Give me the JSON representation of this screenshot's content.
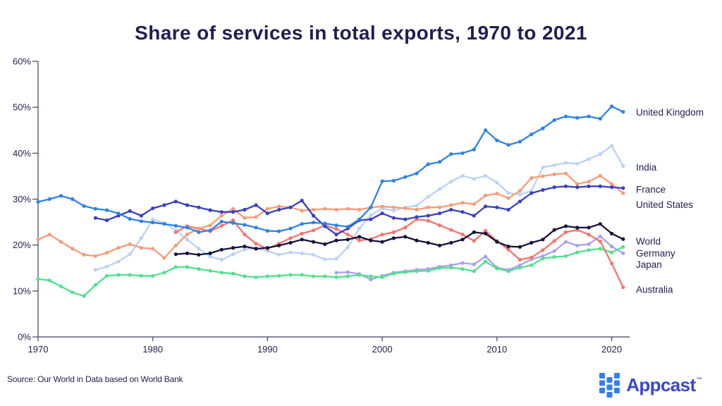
{
  "header": {
    "title": "Share of services in total exports, 1970 to 2021"
  },
  "footer": {
    "source": "Source: Our World in Data based on World Bank"
  },
  "branding": {
    "name": "Appcast",
    "trademark": "™",
    "icon_color": "#2F80ED",
    "text_color": "#3A46D2"
  },
  "chart_data": {
    "type": "line",
    "title": "Share of services in total exports, 1970 to 2021",
    "xlabel": "",
    "ylabel": "",
    "unit": "%",
    "grid": false,
    "legend_position": "right-of-line-ends",
    "axis_color": "#3F3F63",
    "tick_label_color": "#23234F",
    "x_ticks": [
      1970,
      1980,
      1990,
      2000,
      2010,
      2020
    ],
    "y_ticks_pct": [
      0,
      10,
      20,
      30,
      40,
      50,
      60
    ],
    "ylim": [
      0,
      60
    ],
    "xlim": [
      1970,
      2021
    ],
    "series": [
      {
        "name": "United Kingdom",
        "color": "#2E82E8",
        "start_year": 1970,
        "label_pct": 48.9,
        "z": 8,
        "values": [
          29.4,
          30.0,
          30.7,
          30.0,
          28.5,
          27.9,
          27.6,
          26.9,
          25.7,
          25.2,
          24.9,
          24.6,
          24.2,
          23.8,
          22.8,
          23.2,
          25.1,
          24.8,
          24.4,
          23.8,
          23.1,
          23.0,
          23.6,
          24.6,
          24.9,
          24.7,
          24.3,
          24.0,
          25.6,
          28.2,
          33.9,
          34.0,
          34.8,
          35.6,
          37.6,
          38.1,
          39.8,
          40.0,
          40.8,
          45.0,
          42.8,
          41.8,
          42.5,
          44.1,
          45.4,
          47.2,
          48.0,
          47.7,
          48.0,
          47.5,
          50.2,
          49.0
        ]
      },
      {
        "name": "India",
        "color": "#BAD2F4",
        "start_year": 1975,
        "label_pct": 36.9,
        "z": 1,
        "values": [
          14.6,
          15.3,
          16.4,
          18.0,
          21.5,
          25.6,
          24.8,
          23.2,
          21.2,
          19.2,
          17.5,
          16.8,
          18.0,
          19.0,
          19.4,
          18.7,
          17.9,
          18.4,
          18.2,
          17.9,
          16.9,
          17.0,
          19.5,
          23.6,
          26.5,
          28.0,
          27.5,
          28.2,
          28.6,
          30.5,
          32.2,
          33.8,
          35.1,
          34.4,
          35.1,
          33.6,
          31.3,
          31.0,
          31.8,
          36.9,
          37.4,
          37.9,
          37.7,
          38.7,
          39.8,
          41.6,
          37.2
        ]
      },
      {
        "name": "France",
        "color": "#3A3FC2",
        "start_year": 1975,
        "label_pct": 32.1,
        "z": 6,
        "values": [
          25.9,
          25.4,
          26.4,
          27.4,
          26.4,
          28.0,
          28.7,
          29.5,
          28.7,
          28.2,
          27.6,
          27.2,
          27.2,
          27.7,
          28.7,
          26.9,
          27.7,
          28.2,
          29.7,
          26.4,
          24.1,
          22.3,
          23.6,
          25.4,
          25.6,
          26.9,
          25.9,
          25.6,
          26.1,
          26.4,
          26.9,
          27.7,
          27.2,
          26.4,
          28.4,
          28.2,
          27.7,
          29.5,
          31.3,
          32.0,
          32.6,
          32.8,
          32.6,
          32.8,
          32.8,
          32.6,
          32.4
        ]
      },
      {
        "name": "United States",
        "color": "#F59C78",
        "start_year": 1970,
        "label_pct": 28.8,
        "z": 5,
        "values": [
          21.2,
          22.3,
          20.7,
          19.2,
          17.9,
          17.6,
          18.3,
          19.4,
          20.2,
          19.4,
          19.2,
          17.2,
          19.9,
          22.3,
          23.6,
          24.3,
          26.4,
          27.9,
          25.9,
          26.1,
          27.9,
          28.4,
          28.2,
          27.5,
          27.7,
          27.9,
          27.7,
          27.9,
          27.7,
          28.2,
          28.4,
          28.2,
          28.0,
          27.7,
          28.2,
          28.2,
          28.7,
          29.2,
          28.9,
          30.8,
          31.2,
          30.2,
          31.8,
          34.6,
          35.0,
          35.4,
          35.6,
          33.3,
          33.8,
          35.1,
          33.3,
          31.3
        ]
      },
      {
        "name": "World",
        "color": "#14143E",
        "start_year": 1982,
        "label_pct": 20.8,
        "z": 7,
        "values": [
          18.0,
          18.2,
          17.9,
          18.2,
          19.0,
          19.4,
          19.7,
          19.2,
          19.4,
          19.9,
          20.5,
          21.2,
          20.7,
          20.2,
          21.0,
          21.2,
          21.8,
          21.0,
          20.7,
          21.5,
          21.8,
          21.0,
          20.5,
          19.9,
          20.5,
          21.2,
          22.8,
          22.5,
          20.7,
          19.7,
          19.6,
          20.5,
          21.2,
          23.3,
          24.1,
          23.8,
          23.8,
          24.6,
          22.5,
          21.3
        ]
      },
      {
        "name": "Germany",
        "color": "#51E090",
        "start_year": 1970,
        "label_pct": 18.2,
        "z": 3,
        "values": [
          12.6,
          12.3,
          11.0,
          9.7,
          8.9,
          11.3,
          13.3,
          13.5,
          13.5,
          13.3,
          13.3,
          14.0,
          15.2,
          15.2,
          14.8,
          14.4,
          14.0,
          13.8,
          13.2,
          13.0,
          13.2,
          13.3,
          13.5,
          13.5,
          13.2,
          13.2,
          13.0,
          13.2,
          13.5,
          13.2,
          13.0,
          13.8,
          14.1,
          14.3,
          14.4,
          15.0,
          15.1,
          14.8,
          14.3,
          16.4,
          14.9,
          14.3,
          15.1,
          15.6,
          17.1,
          17.4,
          17.6,
          18.4,
          18.9,
          19.2,
          18.4,
          19.6
        ]
      },
      {
        "name": "Japan",
        "color": "#ACA0EC",
        "start_year": 1996,
        "label_pct": 15.7,
        "z": 2,
        "values": [
          14.0,
          14.1,
          13.7,
          12.5,
          13.3,
          14.0,
          14.3,
          14.6,
          14.8,
          15.3,
          15.6,
          16.1,
          15.8,
          17.5,
          15.1,
          14.6,
          15.6,
          16.9,
          17.6,
          18.7,
          20.7,
          19.9,
          20.2,
          21.9,
          19.7,
          18.2
        ]
      },
      {
        "name": "Australia",
        "color": "#F5746C",
        "start_year": 1982,
        "label_pct": 10.3,
        "z": 4,
        "values": [
          22.8,
          24.1,
          23.6,
          23.0,
          24.2,
          25.4,
          22.3,
          20.3,
          19.2,
          20.3,
          21.5,
          22.5,
          23.2,
          24.3,
          23.5,
          22.3,
          21.0,
          21.3,
          22.3,
          22.8,
          23.8,
          25.6,
          25.3,
          24.3,
          23.3,
          22.3,
          20.9,
          23.1,
          20.9,
          19.0,
          16.8,
          17.3,
          18.9,
          20.9,
          22.8,
          23.3,
          22.3,
          20.8,
          16.0,
          10.8
        ]
      }
    ]
  }
}
